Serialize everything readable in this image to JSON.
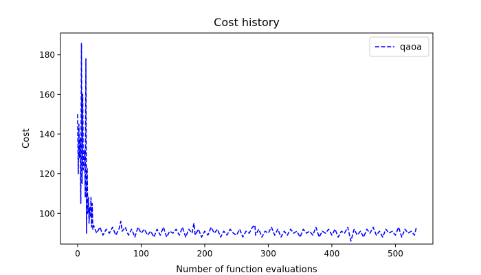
{
  "chart_data": {
    "type": "line",
    "title": "Cost history",
    "xlabel": "Number of function evaluations",
    "ylabel": "Cost",
    "xlim": [
      -27,
      559
    ],
    "ylim": [
      84.5,
      191
    ],
    "xticks": [
      0,
      100,
      200,
      300,
      400,
      500
    ],
    "yticks": [
      100,
      120,
      140,
      160,
      180
    ],
    "grid": false,
    "legend_position": "top-right",
    "series": [
      {
        "name": "qaoa",
        "color": "#0000ff",
        "linestyle": "dashed",
        "x": [
          0,
          1,
          2,
          3,
          4,
          5,
          6,
          7,
          8,
          9,
          10,
          11,
          12,
          13,
          14,
          15,
          16,
          17,
          18,
          19,
          20,
          21,
          22,
          23,
          24,
          25,
          30,
          35,
          40,
          45,
          50,
          55,
          60,
          65,
          68,
          70,
          75,
          80,
          85,
          90,
          95,
          100,
          105,
          110,
          115,
          120,
          125,
          130,
          135,
          140,
          145,
          150,
          155,
          160,
          165,
          170,
          175,
          180,
          183,
          185,
          190,
          195,
          200,
          205,
          210,
          215,
          220,
          225,
          230,
          235,
          240,
          245,
          250,
          255,
          260,
          265,
          270,
          275,
          279,
          280,
          285,
          290,
          295,
          300,
          305,
          310,
          315,
          320,
          325,
          330,
          335,
          340,
          345,
          350,
          355,
          360,
          365,
          370,
          375,
          380,
          385,
          390,
          395,
          400,
          405,
          410,
          415,
          420,
          425,
          430,
          435,
          440,
          445,
          450,
          455,
          460,
          465,
          470,
          475,
          480,
          485,
          490,
          495,
          500,
          505,
          510,
          515,
          520,
          525,
          530,
          533
        ],
        "y": [
          150,
          120,
          145,
          128,
          138,
          105,
          186,
          115,
          160,
          122,
          128,
          132,
          108,
          178,
          90,
          123,
          100,
          108,
          95,
          103,
          98,
          108,
          93,
          105,
          92,
          94,
          90,
          93,
          89,
          92,
          90,
          93,
          89,
          92,
          96,
          91,
          93,
          89,
          92,
          88,
          93,
          90,
          92,
          89,
          91,
          88,
          92,
          89,
          93,
          88,
          91,
          90,
          92,
          89,
          93,
          88,
          92,
          90,
          95,
          89,
          92,
          88,
          91,
          89,
          93,
          90,
          92,
          88,
          91,
          89,
          92,
          90,
          89,
          92,
          88,
          91,
          90,
          93,
          94,
          89,
          92,
          88,
          91,
          90,
          93,
          89,
          92,
          88,
          91,
          89,
          92,
          90,
          91,
          88,
          92,
          90,
          91,
          89,
          93,
          88,
          91,
          90,
          92,
          89,
          92,
          88,
          91,
          90,
          93,
          86,
          92,
          89,
          91,
          88,
          92,
          90,
          93,
          89,
          91,
          88,
          92,
          90,
          91,
          89,
          93,
          88,
          92,
          90,
          91,
          89,
          93
        ]
      }
    ]
  }
}
